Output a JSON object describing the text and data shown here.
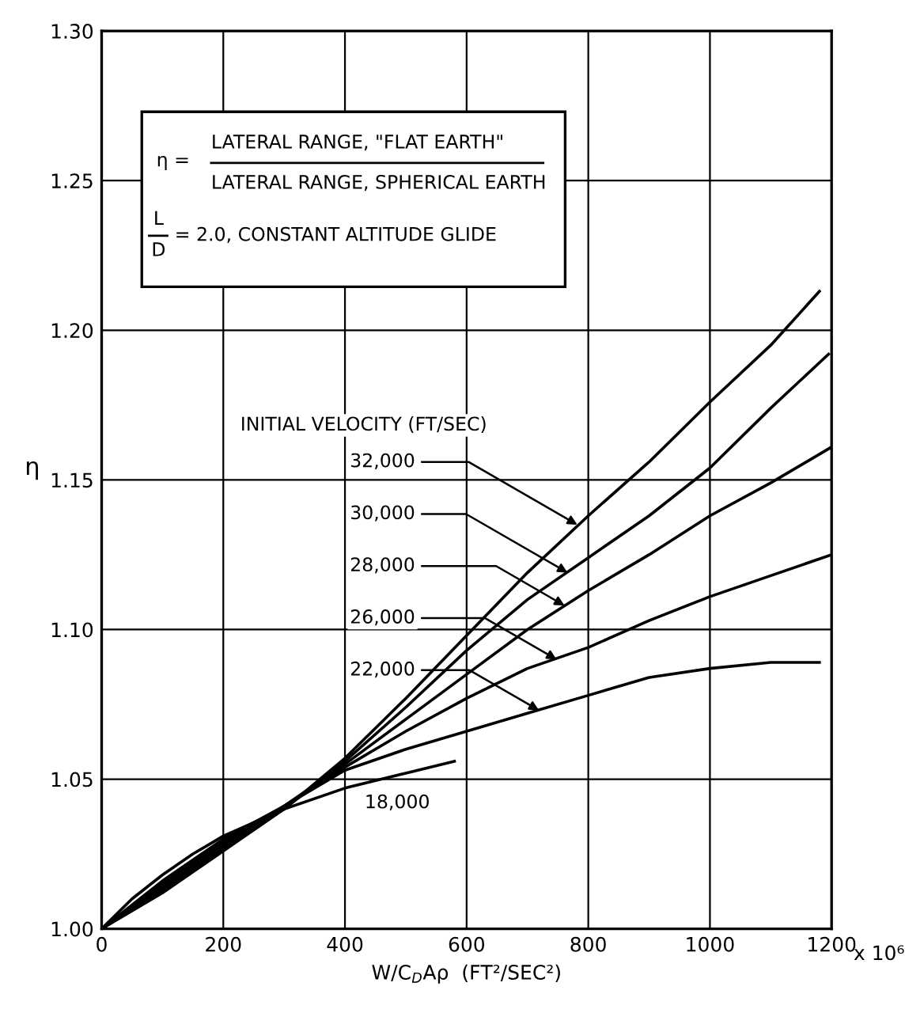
{
  "chart_data": {
    "type": "line",
    "xlabel": "W/C$_{D}$Aρ  (FT²/SEC²)",
    "ylabel": "η",
    "legend_title": "INITIAL VELOCITY (FT/SEC)",
    "xlim": [
      0,
      1200
    ],
    "ylim": [
      1.0,
      1.3
    ],
    "xticks": [
      0,
      200,
      400,
      600,
      800,
      1000,
      1200
    ],
    "yticks": [
      {
        "value": 1.0,
        "label": "1.00"
      },
      1.05,
      {
        "value": 1.1,
        "label": "1.10"
      },
      1.15,
      {
        "value": 1.2,
        "label": "1.20"
      },
      1.25,
      {
        "value": 1.3,
        "label": "1.30"
      }
    ],
    "grid": true,
    "marker": "none",
    "line_style": "solid",
    "series": [
      {
        "color": "#000000",
        "x": [
          0,
          100,
          200,
          300,
          400,
          500,
          600,
          700,
          800,
          900,
          1000,
          1100,
          1180
        ],
        "values": [
          1.0,
          1.012,
          1.026,
          1.04,
          1.057,
          1.077,
          1.098,
          1.119,
          1.138,
          1.156,
          1.176,
          1.195,
          1.213
        ]
      },
      {
        "color": "#000000",
        "x": [
          0,
          100,
          200,
          300,
          400,
          500,
          600,
          700,
          800,
          900,
          1000,
          1100,
          1195
        ],
        "values": [
          1.0,
          1.013,
          1.027,
          1.04,
          1.056,
          1.074,
          1.093,
          1.11,
          1.124,
          1.138,
          1.154,
          1.174,
          1.192
        ]
      },
      {
        "color": "#000000",
        "x": [
          0,
          100,
          200,
          300,
          400,
          500,
          600,
          700,
          800,
          900,
          1000,
          1100,
          1200
        ],
        "values": [
          1.0,
          1.014,
          1.028,
          1.041,
          1.055,
          1.07,
          1.085,
          1.1,
          1.113,
          1.125,
          1.138,
          1.149,
          1.161
        ]
      },
      {
        "color": "#000000",
        "x": [
          0,
          100,
          200,
          300,
          400,
          500,
          600,
          700,
          800,
          900,
          1000,
          1100,
          1200
        ],
        "values": [
          1.0,
          1.015,
          1.029,
          1.041,
          1.054,
          1.066,
          1.077,
          1.087,
          1.094,
          1.103,
          1.111,
          1.118,
          1.125
        ]
      },
      {
        "color": "#000000",
        "x": [
          0,
          100,
          200,
          300,
          400,
          500,
          600,
          700,
          800,
          900,
          1000,
          1100,
          1180
        ],
        "values": [
          1.0,
          1.016,
          1.03,
          1.041,
          1.053,
          1.06,
          1.066,
          1.072,
          1.078,
          1.084,
          1.087,
          1.089,
          1.089
        ]
      },
      {
        "color": "#000000",
        "x": [
          0,
          50,
          100,
          150,
          200,
          300,
          400,
          500,
          580
        ],
        "values": [
          1.0,
          1.01,
          1.018,
          1.025,
          1.031,
          1.04,
          1.047,
          1.052,
          1.056
        ]
      }
    ],
    "annotations": [
      "η =",
      "LATERAL RANGE, \"FLAT EARTH\"",
      "LATERAL RANGE, SPHERICAL EARTH",
      "L",
      "D",
      "= 2.0, CONSTANT ALTITUDE GLIDE",
      "x 10⁶",
      "18,000",
      {
        "text": "32,000",
        "x": 782,
        "y": 1.135
      },
      {
        "text": "30,000",
        "x": 766,
        "y": 1.119
      },
      {
        "text": "28,000",
        "x": 761,
        "y": 1.108
      },
      {
        "text": "26,000",
        "x": 748,
        "y": 1.09
      },
      {
        "text": "22,000",
        "x": 719,
        "y": 1.073
      }
    ]
  }
}
